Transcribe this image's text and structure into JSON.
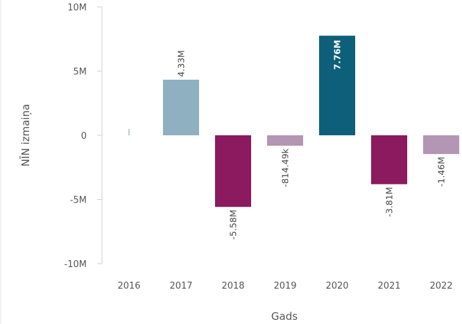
{
  "chart_data": {
    "type": "bar",
    "xlabel": "Gads",
    "ylabel": "NĪN izmaiņa",
    "categories": [
      "2016",
      "2017",
      "2018",
      "2019",
      "2020",
      "2021",
      "2022"
    ],
    "values": [
      0.05,
      4.33,
      -5.58,
      -0.81449,
      7.76,
      -3.81,
      -1.46
    ],
    "data_labels": [
      "",
      "4.33M",
      "-5.58M",
      "-814.49k",
      "7.76M",
      "-3.81M",
      "-1.46M"
    ],
    "value_unit": "millions",
    "ylim": [
      -10,
      10
    ],
    "yticks": [
      10,
      5,
      0,
      -5,
      -10
    ],
    "ytick_labels": [
      "10M",
      "5M",
      "0",
      "-5M",
      "-10M"
    ],
    "bar_colors": [
      "#9fb7c4",
      "#8fb0c0",
      "#8b1a5e",
      "#b396b3",
      "#0e5f79",
      "#8b1a5e",
      "#b396b3"
    ],
    "grid": false
  }
}
